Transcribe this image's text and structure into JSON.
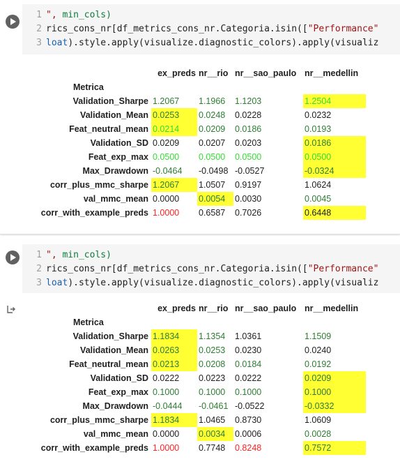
{
  "cell1": {
    "code_lines": [
      {
        "num": "1",
        "parts": [
          {
            "t": "\", ",
            "c": "str"
          },
          {
            "t": "min_cols)",
            "c": "grn"
          }
        ]
      },
      {
        "num": "2",
        "parts": [
          {
            "t": "rics_cons_nr[df_metrics_cons_nr.Categoria.isin([",
            "c": "def"
          },
          {
            "t": "\"Performance\"",
            "c": "str"
          }
        ]
      },
      {
        "num": "3",
        "parts": [
          {
            "t": "loat",
            "c": "blu"
          },
          {
            "t": ").style.apply(visualize.diagnostic_colors).apply(visualiz",
            "c": "def"
          }
        ]
      }
    ],
    "table": {
      "columns": [
        "ex_preds",
        "nr__rio",
        "nr__sao_paulo",
        "nr__medellin"
      ],
      "index_name": "Metrica",
      "rows": [
        {
          "label": "Validation_Sharpe",
          "cells": [
            {
              "v": "1.2067",
              "c": "g",
              "h": false
            },
            {
              "v": "1.1966",
              "c": "g",
              "h": false
            },
            {
              "v": "1.1203",
              "c": "g",
              "h": false
            },
            {
              "v": "1.2504",
              "c": "lg",
              "h": true
            }
          ]
        },
        {
          "label": "Validation_Mean",
          "cells": [
            {
              "v": "0.0253",
              "c": "g",
              "h": true
            },
            {
              "v": "0.0248",
              "c": "g",
              "h": false
            },
            {
              "v": "0.0228",
              "c": "k",
              "h": false
            },
            {
              "v": "0.0232",
              "c": "k",
              "h": false
            }
          ]
        },
        {
          "label": "Feat_neutral_mean",
          "cells": [
            {
              "v": "0.0214",
              "c": "lg",
              "h": true
            },
            {
              "v": "0.0209",
              "c": "g",
              "h": false
            },
            {
              "v": "0.0186",
              "c": "g",
              "h": false
            },
            {
              "v": "0.0193",
              "c": "g",
              "h": false
            }
          ]
        },
        {
          "label": "Validation_SD",
          "cells": [
            {
              "v": "0.0209",
              "c": "k",
              "h": false
            },
            {
              "v": "0.0207",
              "c": "k",
              "h": false
            },
            {
              "v": "0.0203",
              "c": "k",
              "h": false
            },
            {
              "v": "0.0186",
              "c": "g",
              "h": true
            }
          ]
        },
        {
          "label": "Feat_exp_max",
          "cells": [
            {
              "v": "0.0500",
              "c": "lg",
              "h": false
            },
            {
              "v": "0.0500",
              "c": "lg",
              "h": false
            },
            {
              "v": "0.0500",
              "c": "lg",
              "h": false
            },
            {
              "v": "0.0500",
              "c": "lg",
              "h": true
            }
          ]
        },
        {
          "label": "Max_Drawdown",
          "cells": [
            {
              "v": "-0.0464",
              "c": "g",
              "h": false
            },
            {
              "v": "-0.0498",
              "c": "k",
              "h": false
            },
            {
              "v": "-0.0527",
              "c": "k",
              "h": false
            },
            {
              "v": "-0.0324",
              "c": "g",
              "h": true
            }
          ]
        },
        {
          "label": "corr_plus_mmc_sharpe",
          "cells": [
            {
              "v": "1.2067",
              "c": "g",
              "h": true
            },
            {
              "v": "1.0507",
              "c": "k",
              "h": false
            },
            {
              "v": "0.9197",
              "c": "k",
              "h": false
            },
            {
              "v": "1.0624",
              "c": "k",
              "h": false
            }
          ]
        },
        {
          "label": "val_mmc_mean",
          "cells": [
            {
              "v": "0.0000",
              "c": "k",
              "h": false
            },
            {
              "v": "0.0054",
              "c": "g",
              "h": true
            },
            {
              "v": "0.0030",
              "c": "k",
              "h": false
            },
            {
              "v": "0.0045",
              "c": "g",
              "h": false
            }
          ]
        },
        {
          "label": "corr_with_example_preds",
          "cells": [
            {
              "v": "1.0000",
              "c": "r",
              "h": false
            },
            {
              "v": "0.6587",
              "c": "k",
              "h": false
            },
            {
              "v": "0.7026",
              "c": "k",
              "h": false
            },
            {
              "v": "0.6448",
              "c": "k",
              "h": true
            }
          ]
        }
      ]
    }
  },
  "cell2": {
    "code_lines": [
      {
        "num": "1",
        "parts": [
          {
            "t": "\", ",
            "c": "str"
          },
          {
            "t": "min_cols)",
            "c": "grn"
          }
        ]
      },
      {
        "num": "2",
        "parts": [
          {
            "t": "rics_cons_nr[df_metrics_cons_nr.Categoria.isin([",
            "c": "def"
          },
          {
            "t": "\"Performance\"",
            "c": "str"
          }
        ]
      },
      {
        "num": "3",
        "parts": [
          {
            "t": "loat",
            "c": "blu"
          },
          {
            "t": ").style.apply(visualize.diagnostic_colors).apply(visualiz",
            "c": "def"
          }
        ]
      }
    ],
    "table": {
      "columns": [
        "ex_preds",
        "nr__rio",
        "nr__sao_paulo",
        "nr__medellin"
      ],
      "index_name": "Metrica",
      "rows": [
        {
          "label": "Validation_Sharpe",
          "cells": [
            {
              "v": "1.1834",
              "c": "g",
              "h": true
            },
            {
              "v": "1.1354",
              "c": "g",
              "h": false
            },
            {
              "v": "1.0361",
              "c": "k",
              "h": false
            },
            {
              "v": "1.1509",
              "c": "g",
              "h": false
            }
          ]
        },
        {
          "label": "Validation_Mean",
          "cells": [
            {
              "v": "0.0263",
              "c": "g",
              "h": true
            },
            {
              "v": "0.0253",
              "c": "g",
              "h": false
            },
            {
              "v": "0.0230",
              "c": "k",
              "h": false
            },
            {
              "v": "0.0240",
              "c": "k",
              "h": false
            }
          ]
        },
        {
          "label": "Feat_neutral_mean",
          "cells": [
            {
              "v": "0.0213",
              "c": "g",
              "h": true
            },
            {
              "v": "0.0208",
              "c": "g",
              "h": false
            },
            {
              "v": "0.0184",
              "c": "g",
              "h": false
            },
            {
              "v": "0.0192",
              "c": "g",
              "h": false
            }
          ]
        },
        {
          "label": "Validation_SD",
          "cells": [
            {
              "v": "0.0222",
              "c": "k",
              "h": false
            },
            {
              "v": "0.0223",
              "c": "k",
              "h": false
            },
            {
              "v": "0.0222",
              "c": "k",
              "h": false
            },
            {
              "v": "0.0209",
              "c": "g",
              "h": true
            }
          ]
        },
        {
          "label": "Feat_exp_max",
          "cells": [
            {
              "v": "0.1000",
              "c": "g",
              "h": false
            },
            {
              "v": "0.1000",
              "c": "g",
              "h": false
            },
            {
              "v": "0.1000",
              "c": "g",
              "h": false
            },
            {
              "v": "0.1000",
              "c": "g",
              "h": true
            }
          ]
        },
        {
          "label": "Max_Drawdown",
          "cells": [
            {
              "v": "-0.0444",
              "c": "g",
              "h": false
            },
            {
              "v": "-0.0461",
              "c": "g",
              "h": false
            },
            {
              "v": "-0.0522",
              "c": "k",
              "h": false
            },
            {
              "v": "-0.0332",
              "c": "g",
              "h": true
            }
          ]
        },
        {
          "label": "corr_plus_mmc_sharpe",
          "cells": [
            {
              "v": "1.1834",
              "c": "g",
              "h": true
            },
            {
              "v": "1.0465",
              "c": "k",
              "h": false
            },
            {
              "v": "0.8730",
              "c": "k",
              "h": false
            },
            {
              "v": "1.0609",
              "c": "k",
              "h": false
            }
          ]
        },
        {
          "label": "val_mmc_mean",
          "cells": [
            {
              "v": "0.0000",
              "c": "k",
              "h": false
            },
            {
              "v": "0.0034",
              "c": "g",
              "h": true
            },
            {
              "v": "0.0006",
              "c": "k",
              "h": false
            },
            {
              "v": "0.0028",
              "c": "g",
              "h": false
            }
          ]
        },
        {
          "label": "corr_with_example_preds",
          "cells": [
            {
              "v": "1.0000",
              "c": "r",
              "h": false
            },
            {
              "v": "0.7748",
              "c": "k",
              "h": false
            },
            {
              "v": "0.8248",
              "c": "r",
              "h": false
            },
            {
              "v": "0.7572",
              "c": "g",
              "h": true
            }
          ]
        }
      ]
    }
  },
  "colors": {
    "highlight": "#ffff33",
    "dark_green": "#2e7d32",
    "light_green": "#33dd33",
    "red": "#ff2222",
    "code_bg": "#f5f5f5"
  },
  "icons": {
    "run": "play-circle-icon",
    "output": "output-arrow-icon"
  }
}
